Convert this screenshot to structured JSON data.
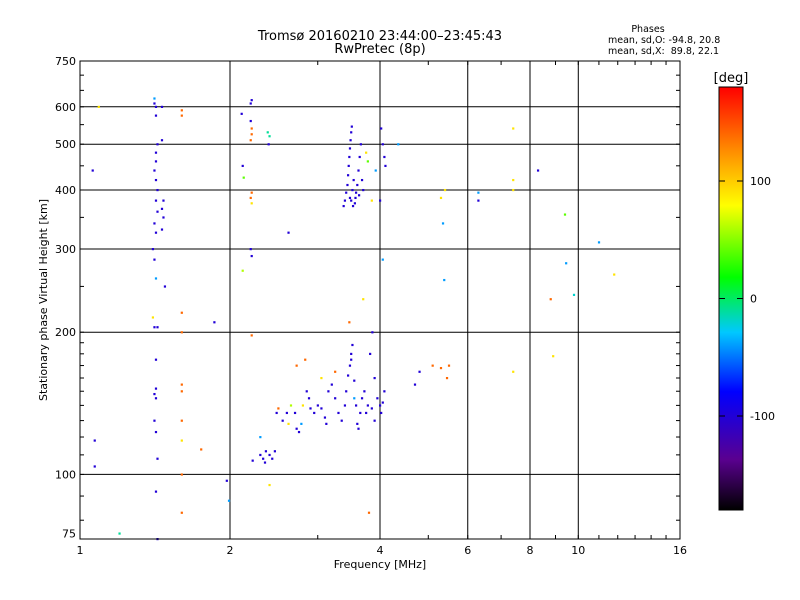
{
  "chart_data": {
    "type": "scatter",
    "title": "Tromsø 20160210 23:44:00–23:45:43",
    "subtitle": "RwPretec (8p)",
    "xlabel": "Frequency [MHz]",
    "ylabel": "Stationary phase Virtual Height [km]",
    "x_scale": "log",
    "y_scale": "log",
    "xlim": [
      1,
      16
    ],
    "ylim": [
      73,
      750
    ],
    "x_ticks": [
      "1",
      "2",
      "4",
      "6",
      "8",
      "10",
      "16"
    ],
    "y_ticks": [
      "75",
      "100",
      "200",
      "300",
      "400",
      "500",
      "600",
      "750"
    ],
    "grid": true,
    "stats": {
      "heading": "Phases",
      "line1": "mean, sd,O: -94.8, 20.8",
      "line2": "mean, sd,X:  89.8, 22.1"
    },
    "colorbar": {
      "label": "[deg]",
      "range": [
        -180,
        180
      ],
      "ticks": [
        "100",
        "0",
        "-100"
      ],
      "tick_values": [
        100,
        0,
        -100
      ]
    },
    "points": [
      {
        "x": 1.06,
        "y": 440,
        "p": -100
      },
      {
        "x": 1.07,
        "y": 118,
        "p": -100
      },
      {
        "x": 1.07,
        "y": 104,
        "p": -100
      },
      {
        "x": 1.09,
        "y": 600,
        "p": 90
      },
      {
        "x": 1.2,
        "y": 75,
        "p": -10
      },
      {
        "x": 1.41,
        "y": 625,
        "p": -40
      },
      {
        "x": 1.41,
        "y": 610,
        "p": -100
      },
      {
        "x": 1.42,
        "y": 600,
        "p": -100
      },
      {
        "x": 1.42,
        "y": 575,
        "p": -100
      },
      {
        "x": 1.43,
        "y": 500,
        "p": -100
      },
      {
        "x": 1.42,
        "y": 480,
        "p": -100
      },
      {
        "x": 1.42,
        "y": 460,
        "p": -100
      },
      {
        "x": 1.41,
        "y": 440,
        "p": -100
      },
      {
        "x": 1.42,
        "y": 420,
        "p": -100
      },
      {
        "x": 1.43,
        "y": 400,
        "p": -100
      },
      {
        "x": 1.42,
        "y": 380,
        "p": -100
      },
      {
        "x": 1.43,
        "y": 360,
        "p": -100
      },
      {
        "x": 1.41,
        "y": 340,
        "p": -100
      },
      {
        "x": 1.42,
        "y": 325,
        "p": -100
      },
      {
        "x": 1.4,
        "y": 300,
        "p": -100
      },
      {
        "x": 1.41,
        "y": 285,
        "p": -100
      },
      {
        "x": 1.42,
        "y": 260,
        "p": -40
      },
      {
        "x": 1.4,
        "y": 215,
        "p": 90
      },
      {
        "x": 1.41,
        "y": 205,
        "p": -100
      },
      {
        "x": 1.43,
        "y": 205,
        "p": -100
      },
      {
        "x": 1.42,
        "y": 175,
        "p": -100
      },
      {
        "x": 1.42,
        "y": 152,
        "p": -100
      },
      {
        "x": 1.41,
        "y": 148,
        "p": -100
      },
      {
        "x": 1.42,
        "y": 145,
        "p": -100
      },
      {
        "x": 1.41,
        "y": 130,
        "p": -100
      },
      {
        "x": 1.42,
        "y": 123,
        "p": -100
      },
      {
        "x": 1.43,
        "y": 108,
        "p": -100
      },
      {
        "x": 1.42,
        "y": 92,
        "p": -100
      },
      {
        "x": 1.43,
        "y": 73,
        "p": -100
      },
      {
        "x": 1.46,
        "y": 600,
        "p": -100
      },
      {
        "x": 1.46,
        "y": 510,
        "p": -100
      },
      {
        "x": 1.47,
        "y": 380,
        "p": -100
      },
      {
        "x": 1.46,
        "y": 365,
        "p": -100
      },
      {
        "x": 1.47,
        "y": 350,
        "p": -100
      },
      {
        "x": 1.46,
        "y": 330,
        "p": -100
      },
      {
        "x": 1.48,
        "y": 250,
        "p": -100
      },
      {
        "x": 1.6,
        "y": 590,
        "p": 140
      },
      {
        "x": 1.6,
        "y": 575,
        "p": 140
      },
      {
        "x": 1.6,
        "y": 220,
        "p": 140
      },
      {
        "x": 1.6,
        "y": 200,
        "p": 140
      },
      {
        "x": 1.6,
        "y": 155,
        "p": 140
      },
      {
        "x": 1.6,
        "y": 150,
        "p": 140
      },
      {
        "x": 1.6,
        "y": 130,
        "p": 140
      },
      {
        "x": 1.6,
        "y": 118,
        "p": 90
      },
      {
        "x": 1.6,
        "y": 100,
        "p": 140
      },
      {
        "x": 1.6,
        "y": 83,
        "p": 140
      },
      {
        "x": 1.75,
        "y": 113,
        "p": 140
      },
      {
        "x": 1.86,
        "y": 210,
        "p": -100
      },
      {
        "x": 1.97,
        "y": 97,
        "p": -100
      },
      {
        "x": 1.99,
        "y": 88,
        "p": -40
      },
      {
        "x": 2.11,
        "y": 580,
        "p": -100
      },
      {
        "x": 2.12,
        "y": 450,
        "p": -100
      },
      {
        "x": 2.13,
        "y": 425,
        "p": 40
      },
      {
        "x": 2.12,
        "y": 270,
        "p": 60
      },
      {
        "x": 2.2,
        "y": 610,
        "p": -100
      },
      {
        "x": 2.21,
        "y": 620,
        "p": -100
      },
      {
        "x": 2.2,
        "y": 560,
        "p": -100
      },
      {
        "x": 2.21,
        "y": 540,
        "p": 140
      },
      {
        "x": 2.21,
        "y": 525,
        "p": 140
      },
      {
        "x": 2.2,
        "y": 510,
        "p": 140
      },
      {
        "x": 2.21,
        "y": 395,
        "p": 140
      },
      {
        "x": 2.2,
        "y": 385,
        "p": 140
      },
      {
        "x": 2.21,
        "y": 375,
        "p": 90
      },
      {
        "x": 2.2,
        "y": 300,
        "p": -100
      },
      {
        "x": 2.21,
        "y": 290,
        "p": -100
      },
      {
        "x": 2.21,
        "y": 197,
        "p": 140
      },
      {
        "x": 2.38,
        "y": 530,
        "p": -10
      },
      {
        "x": 2.4,
        "y": 520,
        "p": -10
      },
      {
        "x": 2.39,
        "y": 500,
        "p": -100
      },
      {
        "x": 2.62,
        "y": 325,
        "p": -100
      },
      {
        "x": 2.22,
        "y": 107,
        "p": -100
      },
      {
        "x": 2.3,
        "y": 110,
        "p": -100
      },
      {
        "x": 2.33,
        "y": 108,
        "p": -100
      },
      {
        "x": 2.36,
        "y": 112,
        "p": -100
      },
      {
        "x": 2.4,
        "y": 110,
        "p": -100
      },
      {
        "x": 2.43,
        "y": 108,
        "p": -100
      },
      {
        "x": 2.46,
        "y": 112,
        "p": -100
      },
      {
        "x": 2.35,
        "y": 106,
        "p": -100
      },
      {
        "x": 2.3,
        "y": 120,
        "p": -40
      },
      {
        "x": 2.4,
        "y": 95,
        "p": 90
      },
      {
        "x": 2.48,
        "y": 135,
        "p": -100
      },
      {
        "x": 2.5,
        "y": 138,
        "p": 140
      },
      {
        "x": 2.55,
        "y": 130,
        "p": -100
      },
      {
        "x": 2.6,
        "y": 135,
        "p": -100
      },
      {
        "x": 2.62,
        "y": 128,
        "p": 90
      },
      {
        "x": 2.65,
        "y": 140,
        "p": 60
      },
      {
        "x": 2.7,
        "y": 135,
        "p": -100
      },
      {
        "x": 2.72,
        "y": 125,
        "p": -100
      },
      {
        "x": 2.75,
        "y": 123,
        "p": -100
      },
      {
        "x": 2.78,
        "y": 128,
        "p": -40
      },
      {
        "x": 2.8,
        "y": 140,
        "p": 90
      },
      {
        "x": 2.85,
        "y": 150,
        "p": -100
      },
      {
        "x": 2.88,
        "y": 145,
        "p": -100
      },
      {
        "x": 2.9,
        "y": 138,
        "p": -100
      },
      {
        "x": 2.95,
        "y": 135,
        "p": -100
      },
      {
        "x": 3.0,
        "y": 140,
        "p": -100
      },
      {
        "x": 3.05,
        "y": 138,
        "p": -100
      },
      {
        "x": 3.1,
        "y": 132,
        "p": -100
      },
      {
        "x": 3.12,
        "y": 128,
        "p": -100
      },
      {
        "x": 3.15,
        "y": 150,
        "p": -100
      },
      {
        "x": 3.2,
        "y": 155,
        "p": -100
      },
      {
        "x": 3.25,
        "y": 145,
        "p": -100
      },
      {
        "x": 3.3,
        "y": 135,
        "p": -100
      },
      {
        "x": 3.35,
        "y": 130,
        "p": -100
      },
      {
        "x": 3.4,
        "y": 140,
        "p": -100
      },
      {
        "x": 3.42,
        "y": 150,
        "p": -100
      },
      {
        "x": 3.45,
        "y": 162,
        "p": -100
      },
      {
        "x": 3.48,
        "y": 170,
        "p": -100
      },
      {
        "x": 3.5,
        "y": 180,
        "p": -100
      },
      {
        "x": 3.52,
        "y": 188,
        "p": -100
      },
      {
        "x": 3.5,
        "y": 175,
        "p": -100
      },
      {
        "x": 3.55,
        "y": 158,
        "p": -100
      },
      {
        "x": 3.58,
        "y": 140,
        "p": -100
      },
      {
        "x": 3.6,
        "y": 128,
        "p": -100
      },
      {
        "x": 3.62,
        "y": 125,
        "p": -100
      },
      {
        "x": 3.65,
        "y": 135,
        "p": -100
      },
      {
        "x": 3.68,
        "y": 145,
        "p": -100
      },
      {
        "x": 3.72,
        "y": 150,
        "p": -100
      },
      {
        "x": 3.75,
        "y": 135,
        "p": -100
      },
      {
        "x": 3.78,
        "y": 140,
        "p": -100
      },
      {
        "x": 3.82,
        "y": 180,
        "p": -100
      },
      {
        "x": 3.86,
        "y": 200,
        "p": -100
      },
      {
        "x": 3.9,
        "y": 160,
        "p": -100
      },
      {
        "x": 3.95,
        "y": 145,
        "p": -100
      },
      {
        "x": 4.0,
        "y": 140,
        "p": -100
      },
      {
        "x": 4.02,
        "y": 135,
        "p": -100
      },
      {
        "x": 4.05,
        "y": 142,
        "p": -100
      },
      {
        "x": 4.08,
        "y": 150,
        "p": -100
      },
      {
        "x": 3.9,
        "y": 130,
        "p": -100
      },
      {
        "x": 3.85,
        "y": 138,
        "p": -100
      },
      {
        "x": 2.72,
        "y": 170,
        "p": 140
      },
      {
        "x": 2.83,
        "y": 175,
        "p": 140
      },
      {
        "x": 3.05,
        "y": 160,
        "p": 90
      },
      {
        "x": 3.25,
        "y": 165,
        "p": 140
      },
      {
        "x": 3.47,
        "y": 210,
        "p": 140
      },
      {
        "x": 3.55,
        "y": 145,
        "p": -40
      },
      {
        "x": 3.7,
        "y": 235,
        "p": 90
      },
      {
        "x": 3.8,
        "y": 83,
        "p": 140
      },
      {
        "x": 3.38,
        "y": 370,
        "p": -100
      },
      {
        "x": 3.4,
        "y": 380,
        "p": -100
      },
      {
        "x": 3.42,
        "y": 395,
        "p": -100
      },
      {
        "x": 3.44,
        "y": 410,
        "p": -100
      },
      {
        "x": 3.45,
        "y": 430,
        "p": -100
      },
      {
        "x": 3.46,
        "y": 450,
        "p": -100
      },
      {
        "x": 3.47,
        "y": 470,
        "p": -100
      },
      {
        "x": 3.48,
        "y": 490,
        "p": -100
      },
      {
        "x": 3.49,
        "y": 510,
        "p": -100
      },
      {
        "x": 3.5,
        "y": 530,
        "p": -100
      },
      {
        "x": 3.51,
        "y": 545,
        "p": -100
      },
      {
        "x": 3.5,
        "y": 380,
        "p": -100
      },
      {
        "x": 3.52,
        "y": 400,
        "p": -100
      },
      {
        "x": 3.54,
        "y": 420,
        "p": -100
      },
      {
        "x": 3.56,
        "y": 375,
        "p": -100
      },
      {
        "x": 3.58,
        "y": 395,
        "p": -100
      },
      {
        "x": 3.6,
        "y": 410,
        "p": -100
      },
      {
        "x": 3.62,
        "y": 440,
        "p": -100
      },
      {
        "x": 3.64,
        "y": 470,
        "p": -100
      },
      {
        "x": 3.66,
        "y": 500,
        "p": -100
      },
      {
        "x": 3.68,
        "y": 420,
        "p": -100
      },
      {
        "x": 3.7,
        "y": 400,
        "p": -100
      },
      {
        "x": 3.48,
        "y": 385,
        "p": -100
      },
      {
        "x": 3.53,
        "y": 370,
        "p": -100
      },
      {
        "x": 3.57,
        "y": 385,
        "p": -100
      },
      {
        "x": 3.63,
        "y": 390,
        "p": -100
      },
      {
        "x": 3.75,
        "y": 480,
        "p": 90
      },
      {
        "x": 3.78,
        "y": 460,
        "p": 40
      },
      {
        "x": 3.85,
        "y": 380,
        "p": 90
      },
      {
        "x": 3.92,
        "y": 440,
        "p": -40
      },
      {
        "x": 4.0,
        "y": 380,
        "p": -100
      },
      {
        "x": 4.02,
        "y": 540,
        "p": -100
      },
      {
        "x": 4.05,
        "y": 500,
        "p": -100
      },
      {
        "x": 4.08,
        "y": 470,
        "p": -100
      },
      {
        "x": 4.1,
        "y": 450,
        "p": -100
      },
      {
        "x": 4.05,
        "y": 285,
        "p": -40
      },
      {
        "x": 4.35,
        "y": 500,
        "p": -40
      },
      {
        "x": 4.8,
        "y": 165,
        "p": -100
      },
      {
        "x": 4.7,
        "y": 155,
        "p": -100
      },
      {
        "x": 5.1,
        "y": 170,
        "p": 140
      },
      {
        "x": 5.3,
        "y": 168,
        "p": 140
      },
      {
        "x": 5.3,
        "y": 385,
        "p": 90
      },
      {
        "x": 5.4,
        "y": 400,
        "p": 90
      },
      {
        "x": 5.35,
        "y": 340,
        "p": -40
      },
      {
        "x": 5.38,
        "y": 258,
        "p": -40
      },
      {
        "x": 5.45,
        "y": 160,
        "p": 140
      },
      {
        "x": 5.5,
        "y": 170,
        "p": 140
      },
      {
        "x": 6.3,
        "y": 395,
        "p": -40
      },
      {
        "x": 6.3,
        "y": 380,
        "p": -100
      },
      {
        "x": 7.4,
        "y": 540,
        "p": 90
      },
      {
        "x": 7.4,
        "y": 420,
        "p": 90
      },
      {
        "x": 7.4,
        "y": 400,
        "p": 90
      },
      {
        "x": 7.4,
        "y": 165,
        "p": 90
      },
      {
        "x": 8.3,
        "y": 440,
        "p": -100
      },
      {
        "x": 8.8,
        "y": 235,
        "p": 140
      },
      {
        "x": 8.9,
        "y": 178,
        "p": 90
      },
      {
        "x": 9.4,
        "y": 355,
        "p": 40
      },
      {
        "x": 9.45,
        "y": 280,
        "p": -40
      },
      {
        "x": 9.8,
        "y": 240,
        "p": -20
      },
      {
        "x": 11.0,
        "y": 310,
        "p": -40
      },
      {
        "x": 11.8,
        "y": 265,
        "p": 90
      }
    ]
  }
}
